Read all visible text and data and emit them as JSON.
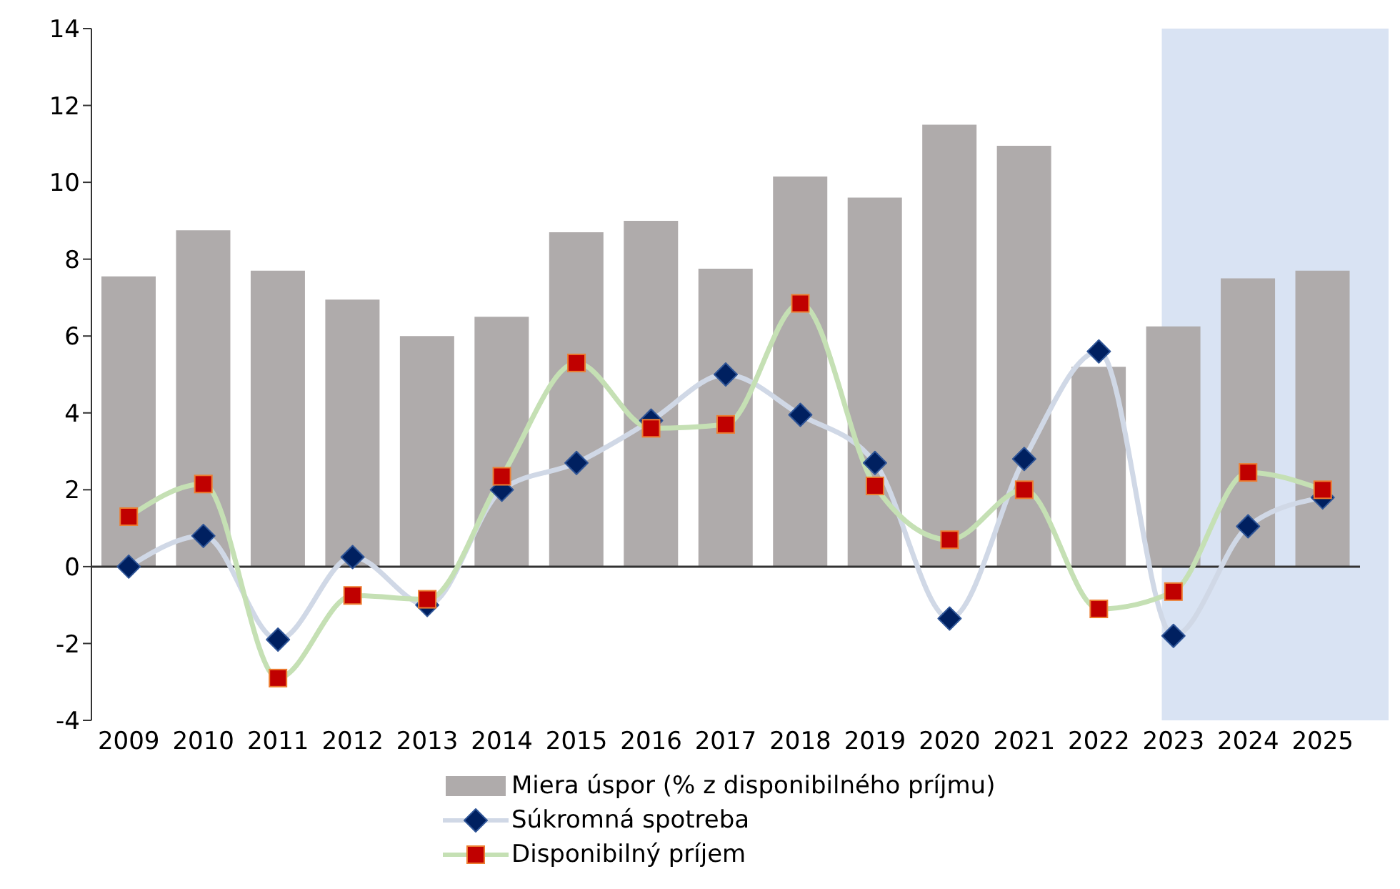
{
  "chart_data": {
    "type": "bar",
    "categories": [
      "2009",
      "2010",
      "2011",
      "2012",
      "2013",
      "2014",
      "2015",
      "2016",
      "2017",
      "2018",
      "2019",
      "2020",
      "2021",
      "2022",
      "2023",
      "2024",
      "2025"
    ],
    "series": [
      {
        "name": "Miera úspor (% z disponibilného príjmu)",
        "color": "#afabab",
        "values": [
          7.55,
          8.75,
          7.7,
          6.95,
          6.0,
          6.5,
          8.7,
          9.0,
          7.75,
          10.15,
          9.6,
          11.5,
          10.95,
          5.2,
          6.25,
          7.5,
          7.7
        ]
      },
      {
        "name": "Súkromná spotreba",
        "type": "line",
        "color": "#d0d8e6",
        "colors": [
          "#002060",
          "#002060",
          "#002060",
          "#002060",
          "#002060",
          "#002060",
          "#002060",
          "#002060",
          "#002060",
          "#002060",
          "#002060",
          "#002060",
          "#002060",
          "#002060",
          "#002060",
          "#002060",
          "#002060"
        ],
        "marker": "diamond",
        "values": [
          0,
          0.8,
          -1.9,
          0.25,
          -1.0,
          2.0,
          2.7,
          3.8,
          5.0,
          3.95,
          2.7,
          -1.35,
          2.8,
          5.6,
          -1.8,
          1.05,
          1.8
        ]
      },
      {
        "name": "Disponibilný príjem",
        "type": "line",
        "color": "#c5e0b4",
        "colors": [
          "#c00000",
          "#c00000",
          "#c00000",
          "#c00000",
          "#c00000",
          "#c00000",
          "#c00000",
          "#c00000",
          "#c00000",
          "#c00000",
          "#c00000",
          "#c00000",
          "#c00000",
          "#c00000",
          "#c00000",
          "#c00000",
          "#c00000"
        ],
        "marker": "square",
        "values": [
          1.3,
          2.15,
          -2.9,
          -0.75,
          -0.85,
          2.35,
          5.3,
          3.6,
          3.7,
          6.85,
          2.1,
          0.7,
          2.0,
          -1.1,
          -0.65,
          2.45,
          2.0
        ]
      }
    ],
    "ylim": [
      -4,
      14
    ],
    "yticks": [
      -4,
      -2,
      0,
      2,
      4,
      6,
      8,
      10,
      12,
      14
    ],
    "ref_lines": [
      {
        "axis": "y",
        "value": 0,
        "color": "#333333"
      }
    ],
    "bands": [
      {
        "axis": "x",
        "from": "2023",
        "to": "2025",
        "color": "#b4c7e7"
      }
    ],
    "legend": "bottom"
  }
}
